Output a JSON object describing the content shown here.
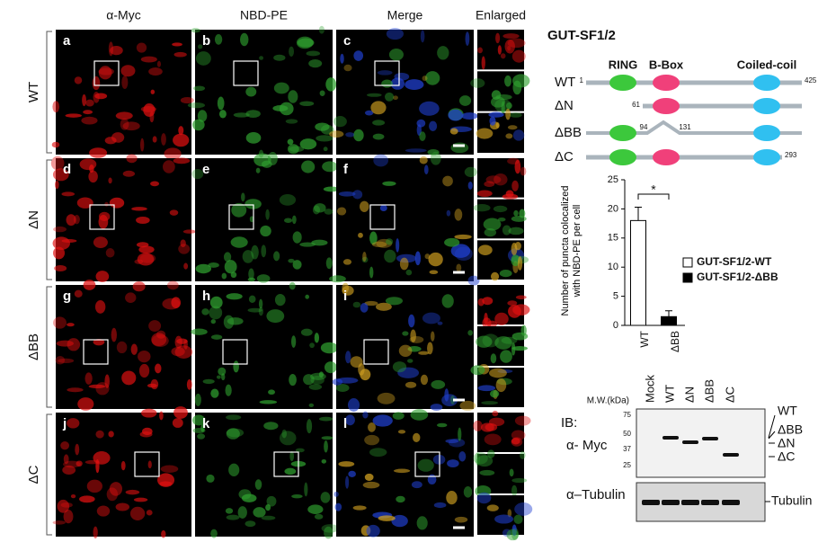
{
  "panels": {
    "columns": [
      "α-Myc",
      "NBD-PE",
      "Merge",
      "Enlarged"
    ],
    "rows": [
      {
        "label": "WT",
        "letters": [
          "a",
          "b",
          "c"
        ]
      },
      {
        "label": "ΔN",
        "letters": [
          "d",
          "e",
          "f"
        ]
      },
      {
        "label": "ΔBB",
        "letters": [
          "g",
          "h",
          "i"
        ]
      },
      {
        "label": "ΔC",
        "letters": [
          "j",
          "k",
          "l"
        ]
      }
    ]
  },
  "construct_diagram": {
    "title": "GUT-SF1/2",
    "domains": [
      "RING",
      "B-Box",
      "Coiled-coil"
    ],
    "constructs": [
      {
        "name": "WT",
        "start": 1,
        "end": 425
      },
      {
        "name": "ΔN",
        "start": 61
      },
      {
        "name": "ΔBB",
        "gap_start": 94,
        "gap_end": 131
      },
      {
        "name": "ΔC",
        "end": 293
      }
    ]
  },
  "chart_data": {
    "type": "bar",
    "ylabel": "Number of puncta colocalized with NBD-PE per cell",
    "categories": [
      "WT",
      "ΔBB"
    ],
    "values": [
      18,
      1.5
    ],
    "errors": [
      2.3,
      1
    ],
    "colors": [
      "#ffffff",
      "#000000"
    ],
    "ylim": [
      0,
      25
    ],
    "yticks": [
      0,
      5,
      10,
      15,
      20,
      25
    ],
    "annotation": "*",
    "legend": [
      "GUT-SF1/2-WT",
      "GUT-SF1/2-ΔBB"
    ]
  },
  "blot": {
    "mw_label": "M.W.(kDa)",
    "mw_markers": [
      75,
      50,
      37,
      25
    ],
    "lanes": [
      "Mock",
      "WT",
      "ΔN",
      "ΔBB",
      "ΔC"
    ],
    "ib_label": "IB:",
    "antibodies": [
      "α- Myc",
      "α–Tubulin"
    ],
    "band_labels": [
      "WT",
      "ΔBB",
      "ΔN",
      "ΔC"
    ],
    "loading_label": "Tubulin"
  }
}
